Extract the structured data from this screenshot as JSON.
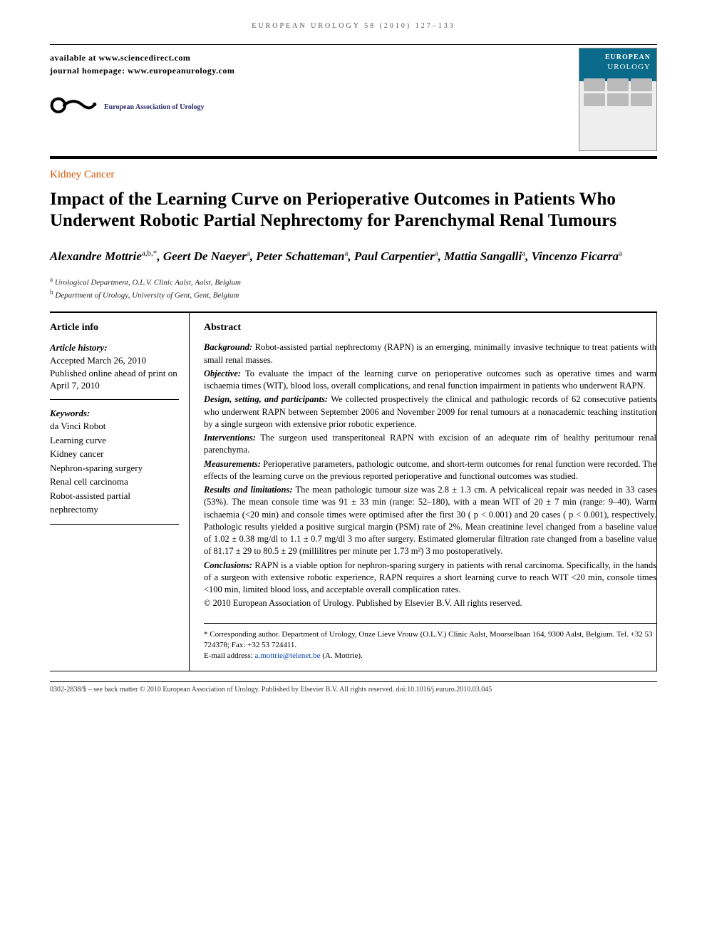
{
  "running_head": "EUROPEAN UROLOGY 58 (2010) 127–133",
  "header": {
    "available_at": "available at www.sciencedirect.com",
    "homepage": "journal homepage: www.europeanurology.com",
    "society_name": "European Association of Urology",
    "cover": {
      "line1": "EUROPEAN",
      "line2": "UROLOGY"
    }
  },
  "section_label": "Kidney Cancer",
  "title": "Impact of the Learning Curve on Perioperative Outcomes in Patients Who Underwent Robotic Partial Nephrectomy for Parenchymal Renal Tumours",
  "authors_html_parts": [
    {
      "name": "Alexandre Mottrie",
      "aff": "a,b,*"
    },
    {
      "name": "Geert De Naeyer",
      "aff": "a"
    },
    {
      "name": "Peter Schatteman",
      "aff": "a"
    },
    {
      "name": "Paul Carpentier",
      "aff": "a"
    },
    {
      "name": "Mattia Sangalli",
      "aff": "a"
    },
    {
      "name": "Vincenzo Ficarra",
      "aff": "a"
    }
  ],
  "affiliations": [
    {
      "marker": "a",
      "text": "Urological Department, O.L.V. Clinic Aalst, Aalst, Belgium"
    },
    {
      "marker": "b",
      "text": "Department of Urology, University of Gent, Gent, Belgium"
    }
  ],
  "article_info": {
    "heading": "Article info",
    "history_label": "Article history:",
    "accepted": "Accepted March 26, 2010",
    "published": "Published online ahead of print on April 7, 2010",
    "keywords_label": "Keywords:",
    "keywords": [
      "da Vinci Robot",
      "Learning curve",
      "Kidney cancer",
      "Nephron-sparing surgery",
      "Renal cell carcinoma",
      "Robot-assisted partial nephrectomy"
    ]
  },
  "abstract": {
    "heading": "Abstract",
    "paragraphs": [
      {
        "label": "Background:",
        "text": " Robot-assisted partial nephrectomy (RAPN) is an emerging, minimally invasive technique to treat patients with small renal masses."
      },
      {
        "label": "Objective:",
        "text": " To evaluate the impact of the learning curve on perioperative outcomes such as operative times and warm ischaemia times (WIT), blood loss, overall complications, and renal function impairment in patients who underwent RAPN."
      },
      {
        "label": "Design, setting, and participants:",
        "text": " We collected prospectively the clinical and pathologic records of 62 consecutive patients who underwent RAPN between September 2006 and November 2009 for renal tumours at a nonacademic teaching institution by a single surgeon with extensive prior robotic experience."
      },
      {
        "label": "Interventions:",
        "text": " The surgeon used transperitoneal RAPN with excision of an adequate rim of healthy peritumour renal parenchyma."
      },
      {
        "label": "Measurements:",
        "text": " Perioperative parameters, pathologic outcome, and short-term outcomes for renal function were recorded. The effects of the learning curve on the previous reported perioperative and functional outcomes was studied."
      },
      {
        "label": "Results and limitations:",
        "text": " The mean pathologic tumour size was 2.8 ± 1.3 cm. A pelvicaliceal repair was needed in 33 cases (53%). The mean console time was 91 ± 33 min (range: 52–180), with a mean WIT of 20 ± 7 min (range: 9–40). Warm ischaemia (<20 min) and console times were optimised after the first 30 ( p < 0.001) and 20 cases ( p < 0.001), respectively. Pathologic results yielded a positive surgical margin (PSM) rate of 2%. Mean creatinine level changed from a baseline value of 1.02 ± 0.38 mg/dl to 1.1 ± 0.7 mg/dl 3 mo after surgery. Estimated glomerular filtration rate changed from a baseline value of 81.17 ± 29 to 80.5 ± 29 (millilitres per minute per 1.73 m²) 3 mo postoperatively."
      },
      {
        "label": "Conclusions:",
        "text": " RAPN is a viable option for nephron-sparing surgery in patients with renal carcinoma. Specifically, in the hands of a surgeon with extensive robotic experience, RAPN requires a short learning curve to reach WIT <20 min, console times <100 min, limited blood loss, and acceptable overall complication rates."
      }
    ],
    "copyright": "© 2010 European Association of Urology. Published by Elsevier B.V. All rights reserved."
  },
  "corresponding": {
    "text": "* Corresponding author. Department of Urology, Onze Lieve Vrouw (O.L.V.) Clinic Aalst, Moorselbaan 164, 9300 Aalst, Belgium. Tel. +32 53 724378; Fax: +32 53 724411.",
    "email_label": "E-mail address: ",
    "email": "a.mottrie@telenet.be",
    "email_suffix": " (A. Mottrie)."
  },
  "footer": "0302-2838/$ – see back matter © 2010 European Association of Urology. Published by Elsevier B.V. All rights reserved.   doi:10.1016/j.eururo.2010.03.045",
  "colors": {
    "section_label": "#d35400",
    "link": "#0645ad",
    "logo": "#000000",
    "cover_bg": "#0a6a8a"
  }
}
